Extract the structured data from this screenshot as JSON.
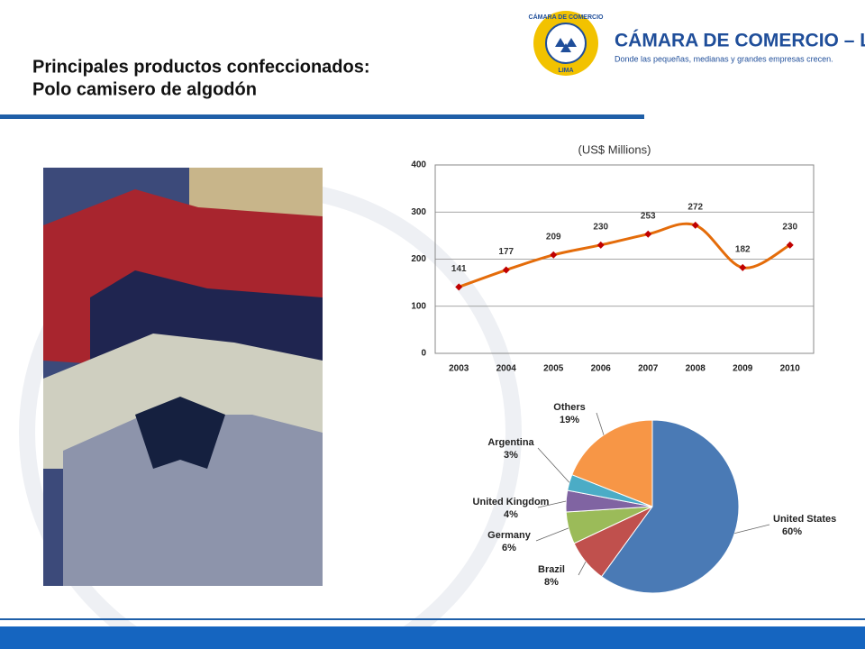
{
  "header": {
    "title_line1": "Principales productos confeccionados:",
    "title_line2": "Polo camisero de algodón",
    "logo_ring_top": "CÁMARA DE COMERCIO",
    "logo_ring_bottom": "LIMA",
    "logo_name": "CÁMARA DE COMERCIO – LIMA",
    "logo_tagline": "Donde las pequeñas, medianas y grandes empresas crecen."
  },
  "chart_data": [
    {
      "type": "line",
      "title": "(US$ Millions)",
      "categories": [
        "2003",
        "2004",
        "2005",
        "2006",
        "2007",
        "2008",
        "2009",
        "2010"
      ],
      "values": [
        141,
        177,
        209,
        230,
        253,
        272,
        182,
        230
      ],
      "color": "#e46c0a",
      "marker_color": "#c00000",
      "ylim": [
        0,
        400
      ],
      "yticks": [
        0,
        100,
        200,
        300,
        400
      ],
      "grid": true
    },
    {
      "type": "pie",
      "categories": [
        "United States",
        "Brazil",
        "Germany",
        "United Kingdom",
        "Argentina",
        "Others"
      ],
      "values": [
        60,
        8,
        6,
        4,
        3,
        19
      ],
      "value_labels": [
        "60%",
        "8%",
        "6%",
        "4%",
        "3%",
        "19%"
      ],
      "colors": [
        "#4a7ab5",
        "#c0504d",
        "#9bbb59",
        "#8064a2",
        "#4bacc6",
        "#f79646"
      ]
    }
  ]
}
